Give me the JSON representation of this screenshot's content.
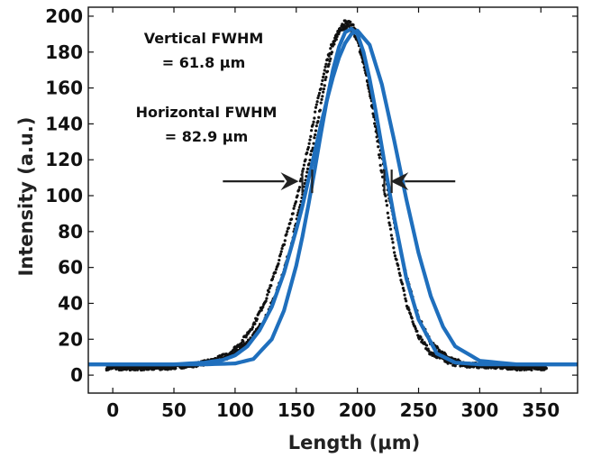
{
  "chart_data": {
    "type": "scatter",
    "xlabel": "Length (μm)",
    "ylabel": "Intensity (a.u.)",
    "xlim": [
      -20,
      380
    ],
    "ylim": [
      -10,
      205
    ],
    "xticks": [
      "0",
      "50",
      "100",
      "150",
      "200",
      "250",
      "300",
      "350"
    ],
    "yticks": [
      "0",
      "20",
      "40",
      "60",
      "80",
      "100",
      "120",
      "140",
      "160",
      "180",
      "200"
    ],
    "grid": false,
    "legend": "none",
    "annotations": [
      {
        "line1": "Vertical FWHM",
        "line2": "= 61.8 μm"
      },
      {
        "line1": "Horizontal FWHM",
        "line2": "= 82.9 μm"
      }
    ],
    "series": [
      {
        "kind": "points",
        "marker": "dot",
        "color": "#111111",
        "fwhm": 61.8,
        "x": [
          -5,
          10,
          25,
          40,
          55,
          70,
          85,
          95,
          105,
          115,
          125,
          135,
          145,
          150,
          155,
          160,
          165,
          170,
          175,
          180,
          185,
          190,
          195,
          200,
          205,
          210,
          215,
          220,
          225,
          230,
          240,
          250,
          260,
          275,
          290,
          310,
          330,
          355
        ],
        "y": [
          4,
          4,
          4,
          4,
          5,
          6,
          8,
          10,
          15,
          22,
          32,
          48,
          70,
          85,
          100,
          116,
          132,
          150,
          168,
          183,
          192,
          197,
          196,
          190,
          175,
          158,
          136,
          112,
          90,
          70,
          40,
          22,
          12,
          7,
          5,
          5,
          4,
          4
        ]
      },
      {
        "kind": "points",
        "marker": "dot",
        "color": "#111111",
        "fwhm": 82.9,
        "x": [
          -5,
          10,
          25,
          40,
          55,
          70,
          85,
          95,
          105,
          115,
          125,
          135,
          145,
          150,
          155,
          160,
          165,
          170,
          175,
          180,
          185,
          190,
          195,
          200,
          205,
          210,
          215,
          220,
          225,
          230,
          240,
          250,
          260,
          275,
          290,
          310,
          330,
          355
        ],
        "y": [
          4,
          4,
          4,
          4,
          5,
          6,
          9,
          12,
          18,
          28,
          42,
          62,
          85,
          98,
          112,
          128,
          145,
          160,
          175,
          186,
          192,
          194,
          193,
          186,
          174,
          158,
          140,
          122,
          103,
          85,
          55,
          32,
          18,
          9,
          6,
          5,
          4,
          4
        ]
      },
      {
        "kind": "fit",
        "color": "#1f6fbd",
        "fwhm": 61.8,
        "x": [
          -25,
          0,
          25,
          50,
          75,
          100,
          115,
          130,
          140,
          150,
          155,
          160,
          165,
          170,
          175,
          180,
          185,
          190,
          195,
          200,
          205,
          210,
          215,
          220,
          225,
          230,
          240,
          250,
          265,
          280,
          300,
          330,
          380
        ],
        "y": [
          6,
          6,
          6,
          6,
          6,
          6.5,
          9,
          20,
          36,
          61,
          77,
          95,
          114,
          134,
          153,
          170,
          183,
          191,
          193,
          190,
          180,
          165,
          147,
          127,
          107,
          88,
          54,
          31,
          12,
          7,
          6,
          6,
          6
        ]
      },
      {
        "kind": "fit",
        "color": "#1f6fbd",
        "fwhm": 82.9,
        "x": [
          -25,
          0,
          25,
          50,
          75,
          90,
          100,
          110,
          120,
          130,
          140,
          150,
          155,
          160,
          165,
          170,
          175,
          180,
          185,
          190,
          195,
          200,
          210,
          220,
          230,
          240,
          250,
          260,
          270,
          280,
          300,
          330,
          380
        ],
        "y": [
          6,
          6,
          6,
          6,
          7,
          8.5,
          11,
          16,
          25,
          38,
          57,
          81,
          94,
          109,
          124,
          139,
          153,
          166,
          177,
          185,
          190,
          192,
          184,
          162,
          131,
          98,
          68,
          44,
          27,
          16,
          8,
          6,
          6
        ]
      }
    ],
    "arrows": [
      {
        "from_x": 90,
        "to_x": 152,
        "y": 108,
        "color": "#222222"
      },
      {
        "from_x": 280,
        "to_x": 227,
        "y": 108,
        "color": "#222222"
      }
    ],
    "fwhm_markers": [
      {
        "x": 155,
        "y": 108
      },
      {
        "x": 163,
        "y": 108
      },
      {
        "x": 222,
        "y": 108
      },
      {
        "x": 228,
        "y": 108
      }
    ]
  }
}
